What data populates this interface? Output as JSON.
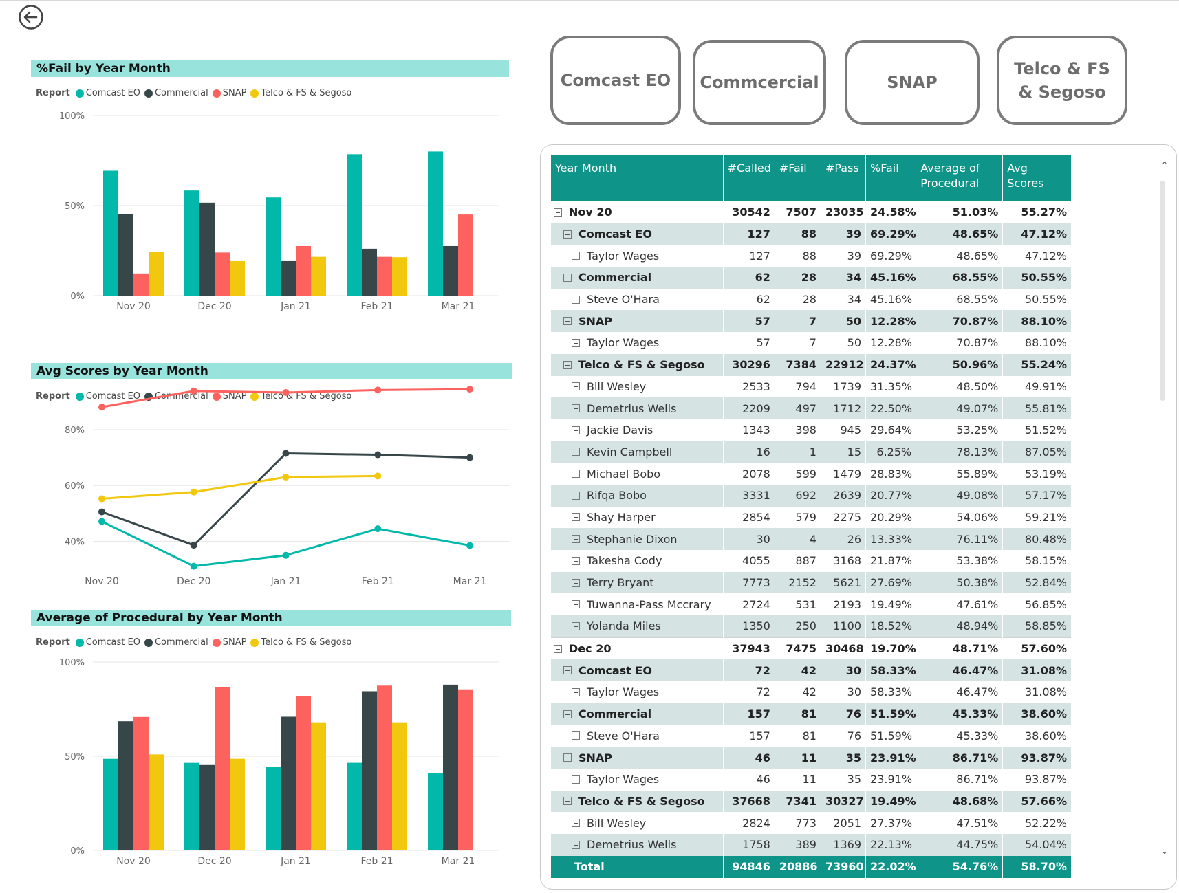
{
  "report_legend_title": "Report",
  "series_names": [
    "Comcast EO",
    "Commercial",
    "SNAP",
    "Telco & FS & Segoso"
  ],
  "series_colors": [
    "#01b8aa",
    "#374649",
    "#fd625e",
    "#f2c80f"
  ],
  "buttons": [
    "Comcast EO",
    "Commcercial",
    "SNAP",
    "Telco & FS & Segoso"
  ],
  "chart_data": [
    {
      "type": "bar",
      "title": "%Fail by Year Month",
      "categories": [
        "Nov 20",
        "Dec 20",
        "Jan 21",
        "Feb 21",
        "Mar 21"
      ],
      "yticks": [
        "0%",
        "50%",
        "100%"
      ],
      "ylim": [
        0,
        100
      ],
      "series": [
        {
          "name": "Comcast EO",
          "values": [
            69.29,
            58.33,
            54.5,
            78.5,
            80.0
          ]
        },
        {
          "name": "Commercial",
          "values": [
            45.16,
            51.59,
            19.5,
            26.0,
            27.5
          ]
        },
        {
          "name": "SNAP",
          "values": [
            12.28,
            23.91,
            27.5,
            21.5,
            45.0
          ]
        },
        {
          "name": "Telco & FS & Segoso",
          "values": [
            24.37,
            19.49,
            21.5,
            21.3,
            null
          ]
        }
      ]
    },
    {
      "type": "line",
      "title": "Avg Scores by Year Month",
      "categories": [
        "Nov 20",
        "Dec 20",
        "Jan 21",
        "Feb 21",
        "Mar 21"
      ],
      "yticks": [
        "40%",
        "60%",
        "80%"
      ],
      "ylim": [
        30,
        97
      ],
      "series": [
        {
          "name": "Comcast EO",
          "values": [
            47.12,
            31.08,
            35.0,
            44.5,
            38.5
          ]
        },
        {
          "name": "Commercial",
          "values": [
            50.55,
            38.6,
            71.5,
            71.0,
            70.0
          ]
        },
        {
          "name": "SNAP",
          "values": [
            88.1,
            93.87,
            93.3,
            94.2,
            94.5
          ]
        },
        {
          "name": "Telco & FS & Segoso",
          "values": [
            55.24,
            57.66,
            63.0,
            63.4,
            null
          ]
        }
      ]
    },
    {
      "type": "bar",
      "title": "Average of Procedural by Year Month",
      "categories": [
        "Nov 20",
        "Dec 20",
        "Jan 21",
        "Feb 21",
        "Mar 21"
      ],
      "yticks": [
        "0%",
        "50%",
        "100%"
      ],
      "ylim": [
        0,
        100
      ],
      "series": [
        {
          "name": "Comcast EO",
          "values": [
            48.65,
            46.47,
            44.5,
            46.5,
            41.0
          ]
        },
        {
          "name": "Commercial",
          "values": [
            68.55,
            45.33,
            71.0,
            84.5,
            88.0
          ]
        },
        {
          "name": "SNAP",
          "values": [
            70.87,
            86.71,
            82.0,
            87.5,
            85.5
          ]
        },
        {
          "name": "Telco & FS & Segoso",
          "values": [
            50.96,
            48.68,
            68.0,
            68.0,
            null
          ]
        }
      ]
    }
  ],
  "matrix": {
    "headers": [
      "Year Month",
      "#Called",
      "#Fail",
      "#Pass",
      "%Fail",
      "Average of Procedural",
      "Avg Scores"
    ],
    "rows": [
      {
        "level": "yr",
        "label": "Nov 20",
        "v": [
          "30542",
          "7507",
          "23035",
          "24.58%",
          "51.03%",
          "55.27%"
        ]
      },
      {
        "level": "grp",
        "label": "Comcast EO",
        "v": [
          "127",
          "88",
          "39",
          "69.29%",
          "48.65%",
          "47.12%"
        ]
      },
      {
        "level": "per",
        "label": "Taylor Wages",
        "v": [
          "127",
          "88",
          "39",
          "69.29%",
          "48.65%",
          "47.12%"
        ]
      },
      {
        "level": "grp",
        "label": "Commercial",
        "v": [
          "62",
          "28",
          "34",
          "45.16%",
          "68.55%",
          "50.55%"
        ]
      },
      {
        "level": "per",
        "label": "Steve O'Hara",
        "v": [
          "62",
          "28",
          "34",
          "45.16%",
          "68.55%",
          "50.55%"
        ]
      },
      {
        "level": "grp",
        "label": "SNAP",
        "v": [
          "57",
          "7",
          "50",
          "12.28%",
          "70.87%",
          "88.10%"
        ]
      },
      {
        "level": "per",
        "label": "Taylor Wages",
        "v": [
          "57",
          "7",
          "50",
          "12.28%",
          "70.87%",
          "88.10%"
        ]
      },
      {
        "level": "grp",
        "label": "Telco & FS & Segoso",
        "v": [
          "30296",
          "7384",
          "22912",
          "24.37%",
          "50.96%",
          "55.24%"
        ]
      },
      {
        "level": "per",
        "label": "Bill Wesley",
        "v": [
          "2533",
          "794",
          "1739",
          "31.35%",
          "48.50%",
          "49.91%"
        ]
      },
      {
        "level": "per alt",
        "label": "Demetrius Wells",
        "v": [
          "2209",
          "497",
          "1712",
          "22.50%",
          "49.07%",
          "55.81%"
        ]
      },
      {
        "level": "per",
        "label": "Jackie Davis",
        "v": [
          "1343",
          "398",
          "945",
          "29.64%",
          "53.25%",
          "51.52%"
        ]
      },
      {
        "level": "per alt",
        "label": "Kevin Campbell",
        "v": [
          "16",
          "1",
          "15",
          "6.25%",
          "78.13%",
          "87.05%"
        ]
      },
      {
        "level": "per",
        "label": "Michael Bobo",
        "v": [
          "2078",
          "599",
          "1479",
          "28.83%",
          "55.89%",
          "53.19%"
        ]
      },
      {
        "level": "per alt",
        "label": "Rifqa Bobo",
        "v": [
          "3331",
          "692",
          "2639",
          "20.77%",
          "49.08%",
          "57.17%"
        ]
      },
      {
        "level": "per",
        "label": "Shay Harper",
        "v": [
          "2854",
          "579",
          "2275",
          "20.29%",
          "54.06%",
          "59.21%"
        ]
      },
      {
        "level": "per alt",
        "label": "Stephanie Dixon",
        "v": [
          "30",
          "4",
          "26",
          "13.33%",
          "76.11%",
          "80.48%"
        ]
      },
      {
        "level": "per",
        "label": "Takesha Cody",
        "v": [
          "4055",
          "887",
          "3168",
          "21.87%",
          "53.38%",
          "58.15%"
        ]
      },
      {
        "level": "per alt",
        "label": "Terry Bryant",
        "v": [
          "7773",
          "2152",
          "5621",
          "27.69%",
          "50.38%",
          "52.84%"
        ]
      },
      {
        "level": "per",
        "label": "Tuwanna-Pass Mccrary",
        "v": [
          "2724",
          "531",
          "2193",
          "19.49%",
          "47.61%",
          "56.85%"
        ]
      },
      {
        "level": "per alt",
        "label": "Yolanda Miles",
        "v": [
          "1350",
          "250",
          "1100",
          "18.52%",
          "48.94%",
          "58.85%"
        ]
      },
      {
        "level": "yr",
        "label": "Dec 20",
        "v": [
          "37943",
          "7475",
          "30468",
          "19.70%",
          "48.71%",
          "57.60%"
        ]
      },
      {
        "level": "grp",
        "label": "Comcast EO",
        "v": [
          "72",
          "42",
          "30",
          "58.33%",
          "46.47%",
          "31.08%"
        ]
      },
      {
        "level": "per",
        "label": "Taylor Wages",
        "v": [
          "72",
          "42",
          "30",
          "58.33%",
          "46.47%",
          "31.08%"
        ]
      },
      {
        "level": "grp",
        "label": "Commercial",
        "v": [
          "157",
          "81",
          "76",
          "51.59%",
          "45.33%",
          "38.60%"
        ]
      },
      {
        "level": "per",
        "label": "Steve O'Hara",
        "v": [
          "157",
          "81",
          "76",
          "51.59%",
          "45.33%",
          "38.60%"
        ]
      },
      {
        "level": "grp",
        "label": "SNAP",
        "v": [
          "46",
          "11",
          "35",
          "23.91%",
          "86.71%",
          "93.87%"
        ]
      },
      {
        "level": "per",
        "label": "Taylor Wages",
        "v": [
          "46",
          "11",
          "35",
          "23.91%",
          "86.71%",
          "93.87%"
        ]
      },
      {
        "level": "grp",
        "label": "Telco & FS & Segoso",
        "v": [
          "37668",
          "7341",
          "30327",
          "19.49%",
          "48.68%",
          "57.66%"
        ]
      },
      {
        "level": "per",
        "label": "Bill Wesley",
        "v": [
          "2824",
          "773",
          "2051",
          "27.37%",
          "47.51%",
          "52.22%"
        ]
      },
      {
        "level": "per alt",
        "label": "Demetrius Wells",
        "v": [
          "1758",
          "389",
          "1369",
          "22.13%",
          "44.75%",
          "54.04%"
        ]
      }
    ],
    "total": {
      "label": "Total",
      "v": [
        "94846",
        "20886",
        "73960",
        "22.02%",
        "54.76%",
        "58.70%"
      ]
    }
  }
}
